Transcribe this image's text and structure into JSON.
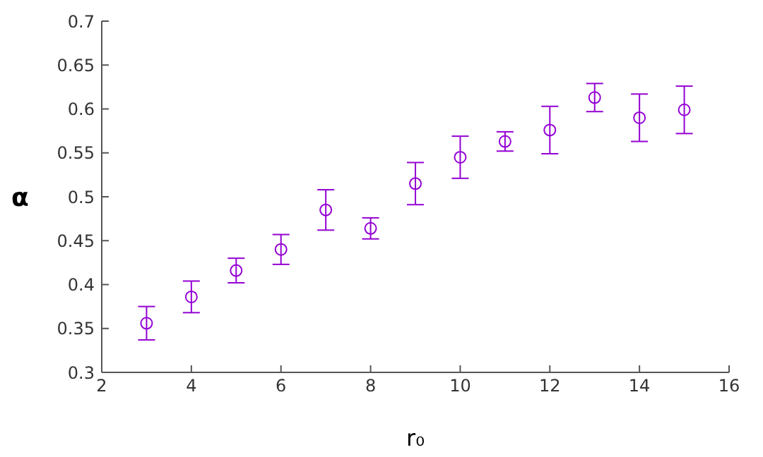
{
  "chart_data": {
    "type": "scatter",
    "xlabel": "r₀",
    "ylabel": "α",
    "x": [
      3,
      4,
      5,
      6,
      7,
      8,
      9,
      10,
      11,
      12,
      13,
      14,
      15
    ],
    "values": [
      0.356,
      0.386,
      0.416,
      0.44,
      0.485,
      0.464,
      0.515,
      0.545,
      0.563,
      0.576,
      0.613,
      0.59,
      0.599
    ],
    "errors": [
      0.019,
      0.018,
      0.014,
      0.017,
      0.023,
      0.012,
      0.024,
      0.024,
      0.011,
      0.027,
      0.016,
      0.027,
      0.027
    ],
    "color": "#9400d3",
    "marker": "circle",
    "xlim": [
      2,
      16
    ],
    "xticks": [
      2,
      4,
      6,
      8,
      10,
      12,
      14,
      16
    ],
    "ylim": [
      0.3,
      0.7
    ],
    "yticks": [
      0.3,
      0.35,
      0.4,
      0.45,
      0.5,
      0.55,
      0.6,
      0.65,
      0.7
    ],
    "grid": false,
    "legend": false
  }
}
